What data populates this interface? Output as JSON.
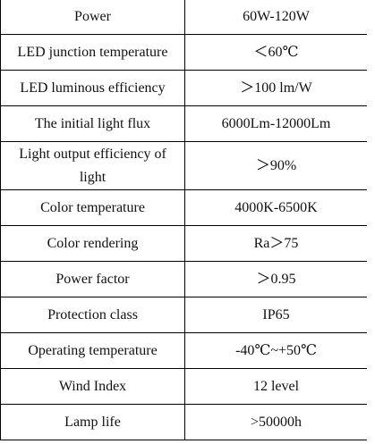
{
  "specs": {
    "rows": [
      {
        "label": "Power",
        "value": "60W-120W"
      },
      {
        "label": "LED junction temperature",
        "value": "＜60℃"
      },
      {
        "label": "LED luminous efficiency",
        "value": "＞100 lm/W"
      },
      {
        "label": "The initial light flux",
        "value": "6000Lm-12000Lm"
      },
      {
        "label": "Light output efficiency of light",
        "value": "＞90%"
      },
      {
        "label": "Color temperature",
        "value": "4000K-6500K"
      },
      {
        "label": "Color rendering",
        "value": "Ra＞75"
      },
      {
        "label": "Power factor",
        "value": "＞0.95"
      },
      {
        "label": "Protection class",
        "value": "IP65"
      },
      {
        "label": "Operating temperature",
        "value": "-40℃~+50℃"
      },
      {
        "label": "Wind Index",
        "value": "12 level"
      },
      {
        "label": "Lamp life",
        "value": ">50000h"
      }
    ]
  }
}
